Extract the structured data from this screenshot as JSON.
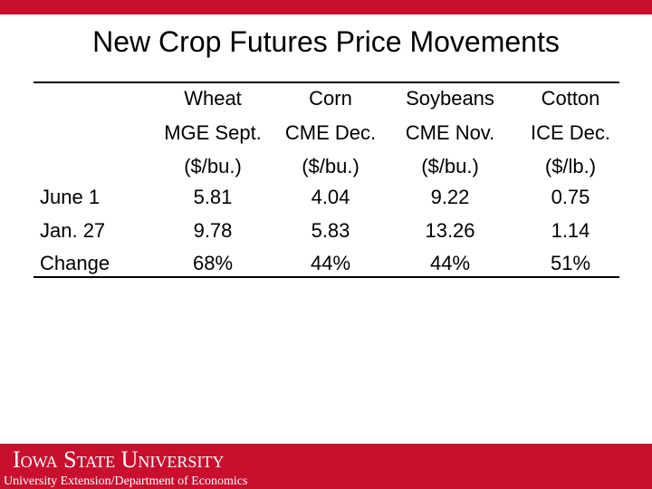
{
  "title": "New Crop Futures Price Movements",
  "table": {
    "columns": [
      [
        "Wheat",
        "MGE Sept.",
        "($/bu.)"
      ],
      [
        "Corn",
        "CME Dec.",
        "($/bu.)"
      ],
      [
        "Soybeans",
        "CME Nov.",
        "($/bu.)"
      ],
      [
        "Cotton",
        "ICE Dec.",
        "($/lb.)"
      ]
    ],
    "rows": [
      {
        "label": "June 1",
        "cells": [
          "5.81",
          "4.04",
          "9.22",
          "0.75"
        ]
      },
      {
        "label": "Jan. 27",
        "cells": [
          "9.78",
          "5.83",
          "13.26",
          "1.14"
        ]
      },
      {
        "label": "Change",
        "cells": [
          "68%",
          "44%",
          "44%",
          "51%"
        ]
      }
    ]
  },
  "footer": {
    "university": "Iowa State University",
    "department": "University Extension/Department of Economics"
  }
}
